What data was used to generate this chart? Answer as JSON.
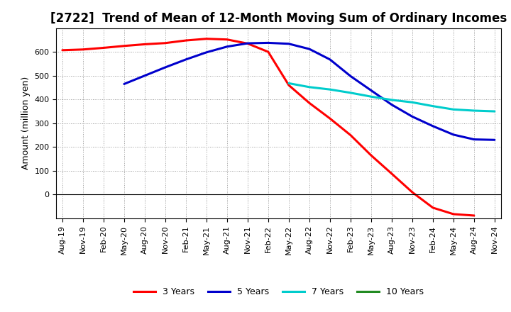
{
  "title": "[2722]  Trend of Mean of 12-Month Moving Sum of Ordinary Incomes",
  "ylabel": "Amount (million yen)",
  "background_color": "#ffffff",
  "grid_color": "#999999",
  "ylim": [
    -100,
    700
  ],
  "yticks": [
    0,
    100,
    200,
    300,
    400,
    500,
    600
  ],
  "x_labels": [
    "Aug-19",
    "Nov-19",
    "Feb-20",
    "May-20",
    "Aug-20",
    "Nov-20",
    "Feb-21",
    "May-21",
    "Aug-21",
    "Nov-21",
    "Feb-22",
    "May-22",
    "Aug-22",
    "Nov-22",
    "Feb-23",
    "May-23",
    "Aug-23",
    "Nov-23",
    "Feb-24",
    "May-24",
    "Aug-24",
    "Nov-24"
  ],
  "series": {
    "3 Years": {
      "color": "#ff0000",
      "linewidth": 2.2,
      "data_x": [
        0,
        1,
        2,
        3,
        4,
        5,
        6,
        7,
        8,
        9,
        10,
        11,
        12,
        13,
        14,
        15,
        16,
        17,
        18,
        19,
        20
      ],
      "data_y": [
        607,
        610,
        617,
        625,
        632,
        637,
        648,
        655,
        652,
        635,
        600,
        460,
        385,
        320,
        250,
        165,
        88,
        10,
        -55,
        -82,
        -88
      ]
    },
    "5 Years": {
      "color": "#0000cc",
      "linewidth": 2.2,
      "data_x": [
        3,
        4,
        5,
        6,
        7,
        8,
        9,
        10,
        11,
        12,
        13,
        14,
        15,
        16,
        17,
        18,
        19,
        20,
        21
      ],
      "data_y": [
        465,
        500,
        535,
        568,
        598,
        622,
        636,
        638,
        634,
        612,
        568,
        498,
        438,
        378,
        328,
        288,
        252,
        232,
        230
      ]
    },
    "7 Years": {
      "color": "#00cccc",
      "linewidth": 2.2,
      "data_x": [
        11,
        12,
        13,
        14,
        15,
        16,
        17,
        18,
        19,
        20,
        21
      ],
      "data_y": [
        468,
        452,
        442,
        428,
        412,
        398,
        388,
        372,
        358,
        353,
        350
      ]
    },
    "10 Years": {
      "color": "#228B22",
      "linewidth": 2.2,
      "data_x": [],
      "data_y": []
    }
  },
  "legend_order": [
    "3 Years",
    "5 Years",
    "7 Years",
    "10 Years"
  ],
  "legend_colors": {
    "3 Years": "#ff0000",
    "5 Years": "#0000cc",
    "7 Years": "#00cccc",
    "10 Years": "#228B22"
  },
  "title_fontsize": 12,
  "ylabel_fontsize": 9,
  "tick_fontsize": 8,
  "legend_fontsize": 9
}
